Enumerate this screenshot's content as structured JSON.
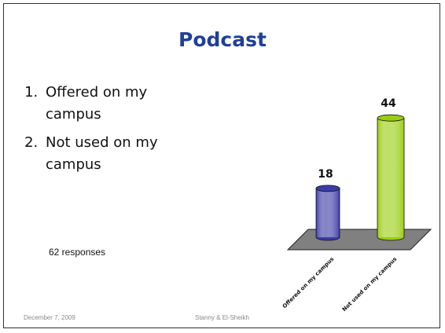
{
  "title": "Podcast",
  "list": [
    "Offered on my campus",
    "Not used on my campus"
  ],
  "note": "62 responses",
  "footer": {
    "date": "December 7, 2009",
    "author": "Stanny & El-Sheikh"
  },
  "chart_data": {
    "type": "bar",
    "categories": [
      "Offered on my campus",
      "Not used on my campus"
    ],
    "values": [
      18,
      44
    ],
    "colors": [
      "#3c3ca8",
      "#9acd10"
    ]
  }
}
